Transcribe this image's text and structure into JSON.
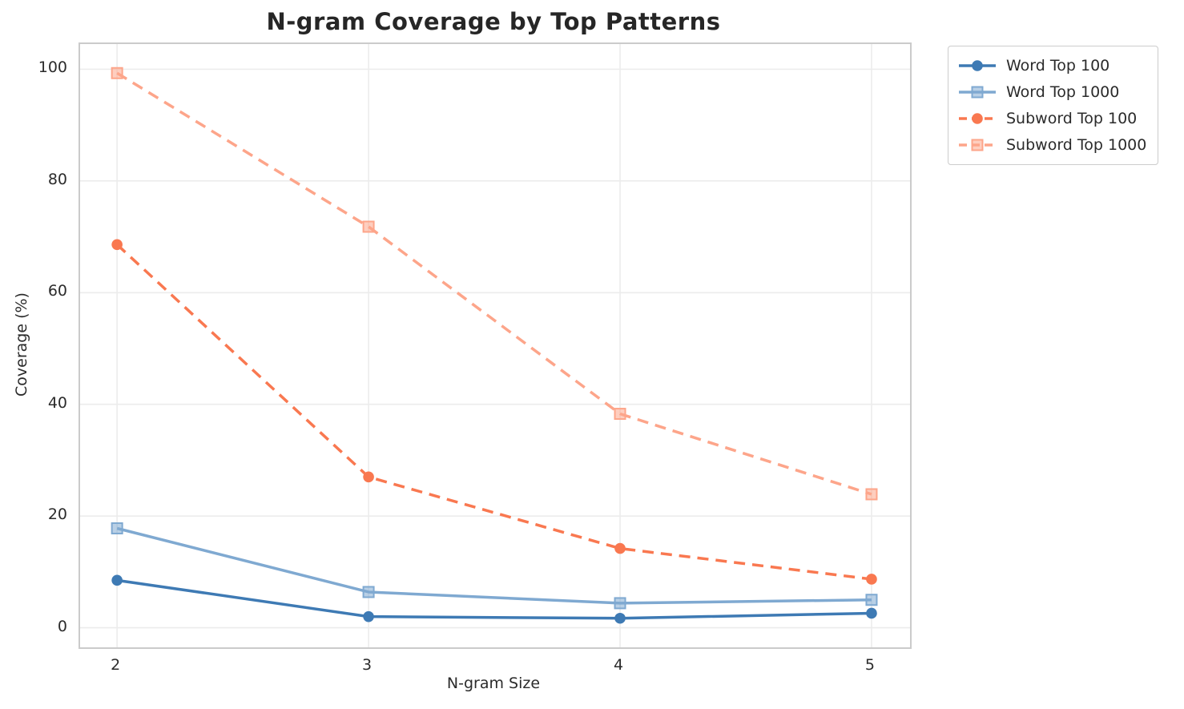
{
  "figure": {
    "background_color": "#ffffff",
    "grid_color": "#ececec",
    "spine_color": "#cbcbcb",
    "text_color": "#2b2b2b"
  },
  "chart_data": {
    "type": "line",
    "title": "N-gram Coverage by Top Patterns",
    "xlabel": "N-gram Size",
    "ylabel": "Coverage (%)",
    "x": [
      2,
      3,
      4,
      5
    ],
    "xticks": [
      "2",
      "3",
      "4",
      "5"
    ],
    "yticks": [
      "0",
      "20",
      "40",
      "60",
      "80",
      "100"
    ],
    "ytick_values": [
      0,
      20,
      40,
      60,
      80,
      100
    ],
    "xlim": [
      1.853,
      5.153
    ],
    "ylim": [
      -3.5,
      104.5
    ],
    "grid": true,
    "legend_position": "outside upper right",
    "series": [
      {
        "name": "Word Top 100",
        "color": "#3e7ab4",
        "marker": "circle",
        "line_style": "solid",
        "values": [
          8.5,
          2.0,
          1.7,
          2.6
        ]
      },
      {
        "name": "Word Top 1000",
        "color": "#7fa9d1",
        "marker": "square",
        "line_style": "solid",
        "values": [
          17.8,
          6.4,
          4.4,
          5.0
        ]
      },
      {
        "name": "Subword Top 100",
        "color": "#f97850",
        "marker": "circle",
        "line_style": "dashed",
        "values": [
          68.6,
          27.0,
          14.2,
          8.7
        ]
      },
      {
        "name": "Subword Top 1000",
        "color": "#fda58a",
        "marker": "square",
        "line_style": "dashed",
        "values": [
          99.3,
          71.8,
          38.3,
          23.9
        ]
      }
    ]
  }
}
